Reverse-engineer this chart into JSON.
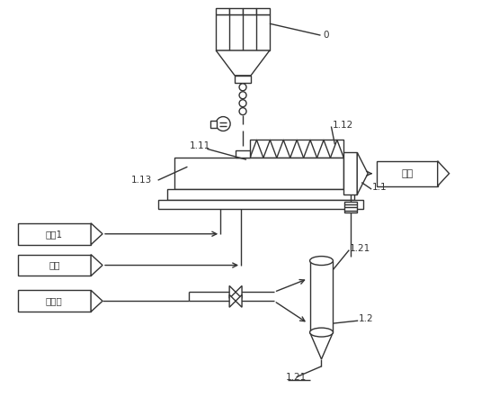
{
  "bg": "#ffffff",
  "lc": "#333333",
  "lw": 1.0,
  "fs": 7.5,
  "labels": {
    "0": "0",
    "1.1": "1.1",
    "1.11": "1.11",
    "1.12": "1.12",
    "1.13": "1.13",
    "1.2": "1.2",
    "1.21a": "1.21",
    "1.21b": "1.21",
    "hot1": "热风1",
    "hot2": "热风",
    "dry": "干燥气",
    "spin": "绺丝"
  }
}
